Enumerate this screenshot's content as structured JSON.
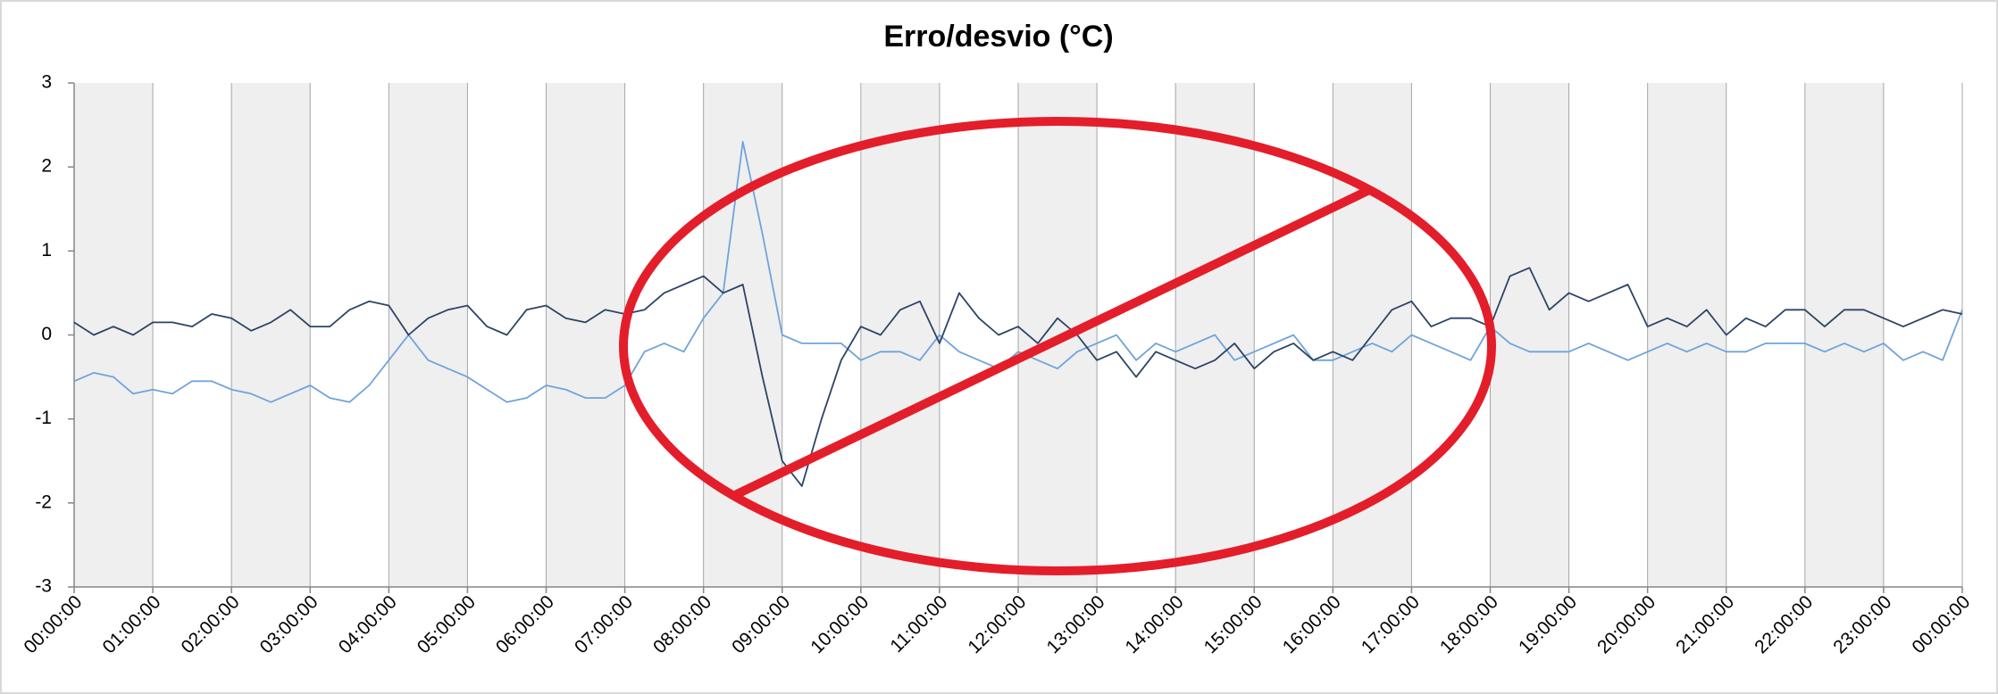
{
  "chart_data": {
    "type": "line",
    "title": "Erro/desvio (°C)",
    "x": [
      0,
      0.25,
      0.5,
      0.75,
      1,
      1.25,
      1.5,
      1.75,
      2,
      2.25,
      2.5,
      2.75,
      3,
      3.25,
      3.5,
      3.75,
      4,
      4.25,
      4.5,
      4.75,
      5,
      5.25,
      5.5,
      5.75,
      6,
      6.25,
      6.5,
      6.75,
      7,
      7.25,
      7.5,
      7.75,
      8,
      8.25,
      8.5,
      8.75,
      9,
      9.25,
      9.5,
      9.75,
      10,
      10.25,
      10.5,
      10.75,
      11,
      11.25,
      11.5,
      11.75,
      12,
      12.25,
      12.5,
      12.75,
      13,
      13.25,
      13.5,
      13.75,
      14,
      14.25,
      14.5,
      14.75,
      15,
      15.25,
      15.5,
      15.75,
      16,
      16.25,
      16.5,
      16.75,
      17,
      17.25,
      17.5,
      17.75,
      18,
      18.25,
      18.5,
      18.75,
      19,
      19.25,
      19.5,
      19.75,
      20,
      20.25,
      20.5,
      20.75,
      21,
      21.25,
      21.5,
      21.75,
      22,
      22.25,
      22.5,
      22.75,
      23,
      23.25,
      23.5,
      23.75,
      24
    ],
    "series": [
      {
        "color": "#2c4466",
        "values": [
          0.15,
          0,
          0.1,
          0,
          0.15,
          0.15,
          0.1,
          0.25,
          0.2,
          0.05,
          0.15,
          0.3,
          0.1,
          0.1,
          0.3,
          0.4,
          0.35,
          0,
          0.2,
          0.3,
          0.35,
          0.1,
          0,
          0.3,
          0.35,
          0.2,
          0.15,
          0.3,
          0.25,
          0.3,
          0.5,
          0.6,
          0.7,
          0.5,
          0.6,
          -0.5,
          -1.5,
          -1.8,
          -1,
          -0.3,
          0.1,
          0,
          0.3,
          0.4,
          -0.1,
          0.5,
          0.2,
          0,
          0.1,
          -0.1,
          0.2,
          0,
          -0.3,
          -0.2,
          -0.5,
          -0.2,
          -0.3,
          -0.4,
          -0.3,
          -0.1,
          -0.4,
          -0.2,
          -0.1,
          -0.3,
          -0.2,
          -0.3,
          0,
          0.3,
          0.4,
          0.1,
          0.2,
          0.2,
          0.1,
          0.7,
          0.8,
          0.3,
          0.5,
          0.4,
          0.5,
          0.6,
          0.1,
          0.2,
          0.1,
          0.3,
          0,
          0.2,
          0.1,
          0.3,
          0.3,
          0.1,
          0.3,
          0.3,
          0.2,
          0.1,
          0.2,
          0.3,
          0.25
        ]
      },
      {
        "color": "#6fa3dc",
        "values": [
          -0.55,
          -0.45,
          -0.5,
          -0.7,
          -0.65,
          -0.7,
          -0.55,
          -0.55,
          -0.65,
          -0.7,
          -0.8,
          -0.7,
          -0.6,
          -0.75,
          -0.8,
          -0.6,
          -0.3,
          0,
          -0.3,
          -0.4,
          -0.5,
          -0.65,
          -0.8,
          -0.75,
          -0.6,
          -0.65,
          -0.75,
          -0.75,
          -0.6,
          -0.2,
          -0.1,
          -0.2,
          0.2,
          0.5,
          2.3,
          1.2,
          0,
          -0.1,
          -0.1,
          -0.1,
          -0.3,
          -0.2,
          -0.2,
          -0.3,
          0,
          -0.2,
          -0.3,
          -0.4,
          -0.2,
          -0.3,
          -0.4,
          -0.2,
          -0.1,
          0,
          -0.3,
          -0.1,
          -0.2,
          -0.1,
          0,
          -0.3,
          -0.2,
          -0.1,
          0,
          -0.3,
          -0.3,
          -0.2,
          -0.1,
          -0.2,
          0,
          -0.1,
          -0.2,
          -0.3,
          0.1,
          -0.1,
          -0.2,
          -0.2,
          -0.2,
          -0.1,
          -0.2,
          -0.3,
          -0.2,
          -0.1,
          -0.2,
          -0.1,
          -0.2,
          -0.2,
          -0.1,
          -0.1,
          -0.1,
          -0.2,
          -0.1,
          -0.2,
          -0.1,
          -0.3,
          -0.2,
          -0.3,
          0.3
        ]
      }
    ],
    "xlim": [
      0,
      24
    ],
    "xticks": [
      {
        "value": 0,
        "label": "00:00:00"
      },
      {
        "value": 1,
        "label": "01:00:00"
      },
      {
        "value": 2,
        "label": "02:00:00"
      },
      {
        "value": 3,
        "label": "03:00:00"
      },
      {
        "value": 4,
        "label": "04:00:00"
      },
      {
        "value": 5,
        "label": "05:00:00"
      },
      {
        "value": 6,
        "label": "06:00:00"
      },
      {
        "value": 7,
        "label": "07:00:00"
      },
      {
        "value": 8,
        "label": "08:00:00"
      },
      {
        "value": 9,
        "label": "09:00:00"
      },
      {
        "value": 10,
        "label": "10:00:00"
      },
      {
        "value": 11,
        "label": "11:00:00"
      },
      {
        "value": 12,
        "label": "12:00:00"
      },
      {
        "value": 13,
        "label": "13:00:00"
      },
      {
        "value": 14,
        "label": "14:00:00"
      },
      {
        "value": 15,
        "label": "15:00:00"
      },
      {
        "value": 16,
        "label": "16:00:00"
      },
      {
        "value": 17,
        "label": "17:00:00"
      },
      {
        "value": 18,
        "label": "18:00:00"
      },
      {
        "value": 19,
        "label": "19:00:00"
      },
      {
        "value": 20,
        "label": "20:00:00"
      },
      {
        "value": 21,
        "label": "21:00:00"
      },
      {
        "value": 22,
        "label": "22:00:00"
      },
      {
        "value": 23,
        "label": "23:00:00"
      },
      {
        "value": 24,
        "label": "00:00:00"
      }
    ],
    "ylim": [
      -3,
      3
    ],
    "yticks": [
      -3,
      -2,
      -1,
      0,
      1,
      2,
      3
    ],
    "grid": true
  }
}
